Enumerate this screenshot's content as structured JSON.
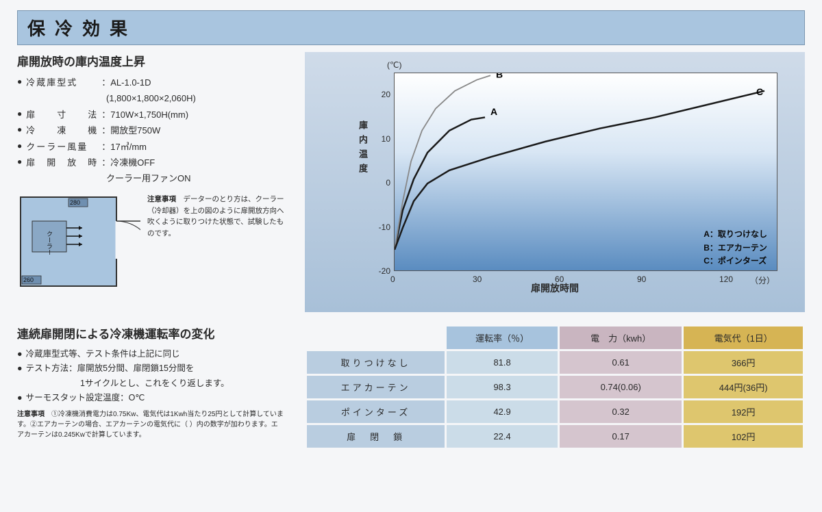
{
  "title": "保冷効果",
  "section1": {
    "heading": "扉開放時の庫内温度上昇",
    "specs": [
      {
        "label": "冷蔵庫型式",
        "value": "AL-1.0-1D"
      },
      {
        "indent": true,
        "value": "(1,800×1,800×2,060H)"
      },
      {
        "label": "扉　　寸　　法",
        "value": "710W×1,750H(mm)"
      },
      {
        "label": "冷　　凍　　機",
        "value": "開放型750W"
      },
      {
        "label": "クーラー風量",
        "value": "17㎥/mm"
      },
      {
        "label": "扉　開　放　時",
        "value": "冷凍機OFF"
      },
      {
        "indent": true,
        "value": "クーラー用ファンON"
      }
    ],
    "floorplan": {
      "cooler_label": "クーラー",
      "dim_w": "260",
      "dim_h": "280"
    },
    "diagram_note_label": "注意事項",
    "diagram_note": "データーのとり方は、クーラー（冷却器）を上の図のように扉開放方向へ吹くように取りつけた状態で、試験したものです。"
  },
  "chart": {
    "y_label": "庫内温度",
    "y_unit": "(℃)",
    "x_label": "扉開放時間",
    "x_unit": "（分）",
    "y_ticks": [
      20,
      10,
      0,
      -10,
      -20
    ],
    "y_min": -20,
    "y_max": 25,
    "x_ticks": [
      0,
      30,
      60,
      90,
      120
    ],
    "x_min": 0,
    "x_max": 140,
    "legend": [
      {
        "key": "A",
        "text": "取りつけなし"
      },
      {
        "key": "B",
        "text": "エアカーテン"
      },
      {
        "key": "C",
        "text": "ポインターズ"
      }
    ],
    "curves": {
      "A": {
        "label": "A",
        "color": "#1a1a1a",
        "width": 2.5,
        "points": [
          [
            0,
            -15
          ],
          [
            3,
            -6
          ],
          [
            7,
            1
          ],
          [
            12,
            7
          ],
          [
            20,
            12
          ],
          [
            28,
            14.5
          ],
          [
            33,
            15
          ]
        ]
      },
      "B": {
        "label": "B",
        "color": "#888888",
        "width": 1.8,
        "points": [
          [
            0,
            -15
          ],
          [
            3,
            -4
          ],
          [
            6,
            5
          ],
          [
            10,
            12
          ],
          [
            15,
            17
          ],
          [
            22,
            21
          ],
          [
            30,
            23.5
          ],
          [
            35,
            24.5
          ]
        ]
      },
      "C": {
        "label": "C",
        "color": "#1a1a1a",
        "width": 2.5,
        "points": [
          [
            0,
            -15
          ],
          [
            3,
            -10
          ],
          [
            7,
            -4
          ],
          [
            12,
            0
          ],
          [
            20,
            3
          ],
          [
            35,
            6
          ],
          [
            55,
            9.5
          ],
          [
            75,
            12.5
          ],
          [
            95,
            15
          ],
          [
            115,
            18
          ],
          [
            135,
            21
          ]
        ]
      }
    }
  },
  "section2": {
    "heading": "連続扉開閉による冷凍機運転率の変化",
    "items": [
      {
        "text": "冷蔵庫型式等、テスト条件は上記に同じ"
      },
      {
        "label": "テスト方法：",
        "text": "扉開放5分間、扉閉鎖15分間を"
      },
      {
        "indent": true,
        "text": "1サイクルとし、これをくり返します。"
      },
      {
        "text": "サーモスタット設定温度：O℃"
      }
    ],
    "note_label": "注意事項",
    "note": "①冷凍機消費電力は0.75Kw、電気代は1Kwh当たり25円として計算しています。②エアカーテンの場合、エアカーテンの電気代に（ ）内の数字が加わります。エアカーテンは0.245Kwで計算しています。"
  },
  "table": {
    "headers": [
      "",
      "運転率（％）",
      "電　力（kwh）",
      "電気代（1日）"
    ],
    "rows": [
      {
        "label": "取りつけなし",
        "cells": [
          "81.8",
          "0.61",
          "366円"
        ]
      },
      {
        "label": "エアカーテン",
        "cells": [
          "98.3",
          "0.74(0.06)",
          "444円(36円)"
        ]
      },
      {
        "label": "ポインターズ",
        "cells": [
          "42.9",
          "0.32",
          "192円"
        ]
      },
      {
        "label": "扉　閉　鎖",
        "cells": [
          "22.4",
          "0.17",
          "102円"
        ]
      }
    ]
  }
}
